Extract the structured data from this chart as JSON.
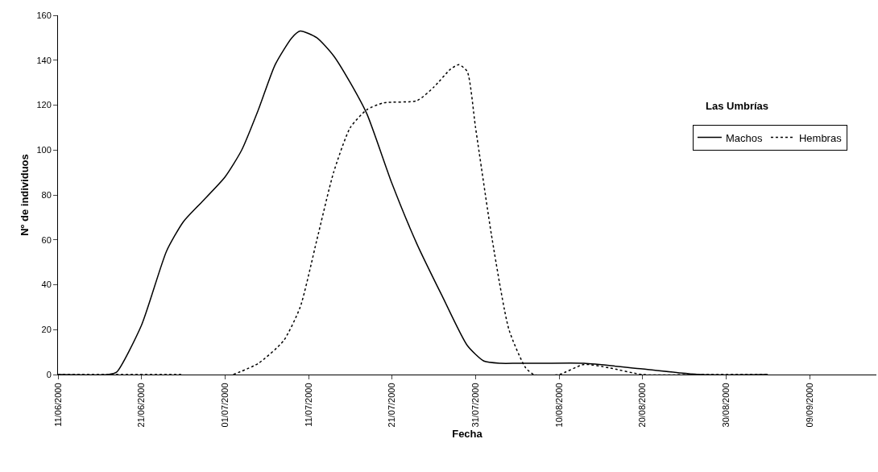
{
  "chart_data": {
    "type": "line",
    "xlabel": "Fecha",
    "ylabel": "Nº de individuos",
    "legend_title": "Las Umbrías",
    "xlim": [
      "2000-06-11",
      "2000-09-17"
    ],
    "ylim": [
      0,
      160
    ],
    "yticks": [
      0,
      20,
      40,
      60,
      80,
      100,
      120,
      140,
      160
    ],
    "xticks": [
      {
        "value": "2000-06-11",
        "label": "11/06/2000"
      },
      {
        "value": "2000-06-21",
        "label": "21/06/2000"
      },
      {
        "value": "2000-07-01",
        "label": "01/07/2000"
      },
      {
        "value": "2000-07-11",
        "label": "11/07/2000"
      },
      {
        "value": "2000-07-21",
        "label": "21/07/2000"
      },
      {
        "value": "2000-07-31",
        "label": "31/07/2000"
      },
      {
        "value": "2000-08-10",
        "label": "10/08/2000"
      },
      {
        "value": "2000-08-20",
        "label": "20/08/2000"
      },
      {
        "value": "2000-08-30",
        "label": "30/08/2000"
      },
      {
        "value": "2000-09-09",
        "label": "09/09/2000"
      }
    ],
    "legend": "right",
    "marker": "none",
    "series": [
      {
        "name": "Machos",
        "color": "#000000",
        "line_style": "solid",
        "x": [
          "2000-06-11",
          "2000-06-17",
          "2000-06-18",
          "2000-06-21",
          "2000-06-24",
          "2000-06-26",
          "2000-06-28",
          "2000-07-01",
          "2000-07-03",
          "2000-07-05",
          "2000-07-07",
          "2000-07-09",
          "2000-07-10",
          "2000-07-12",
          "2000-07-14",
          "2000-07-16",
          "2000-07-18",
          "2000-07-21",
          "2000-07-24",
          "2000-07-27",
          "2000-07-30",
          "2000-08-01",
          "2000-08-03",
          "2000-08-05",
          "2000-08-08",
          "2000-08-13",
          "2000-08-20",
          "2000-08-27",
          "2000-09-04"
        ],
        "values": [
          0,
          0,
          1,
          22,
          55,
          68,
          76,
          88,
          100,
          118,
          138,
          150,
          153,
          150,
          142,
          130,
          116,
          85,
          58,
          35,
          13,
          6,
          5,
          5,
          5,
          5,
          2.5,
          0,
          0
        ]
      },
      {
        "name": "Hembras",
        "color": "#000000",
        "line_style": "dotted",
        "x": [
          "2000-06-11",
          "2000-06-26",
          "2000-06-29",
          "2000-07-02",
          "2000-07-05",
          "2000-07-08",
          "2000-07-10",
          "2000-07-12",
          "2000-07-14",
          "2000-07-16",
          "2000-07-18",
          "2000-07-20",
          "2000-07-24",
          "2000-07-26",
          "2000-07-28",
          "2000-07-29",
          "2000-07-30",
          "2000-07-31",
          "2000-08-02",
          "2000-08-04",
          "2000-08-06",
          "2000-08-07",
          "2000-08-10",
          "2000-08-13",
          "2000-08-16",
          "2000-08-20",
          "2000-08-27",
          "2000-09-04"
        ],
        "values": [
          0,
          0,
          null,
          0,
          5,
          15,
          30,
          60,
          90,
          110,
          118,
          121,
          122,
          128,
          136,
          138,
          135,
          110,
          60,
          20,
          3,
          0,
          0,
          4.5,
          3,
          0,
          0,
          0
        ]
      }
    ]
  }
}
